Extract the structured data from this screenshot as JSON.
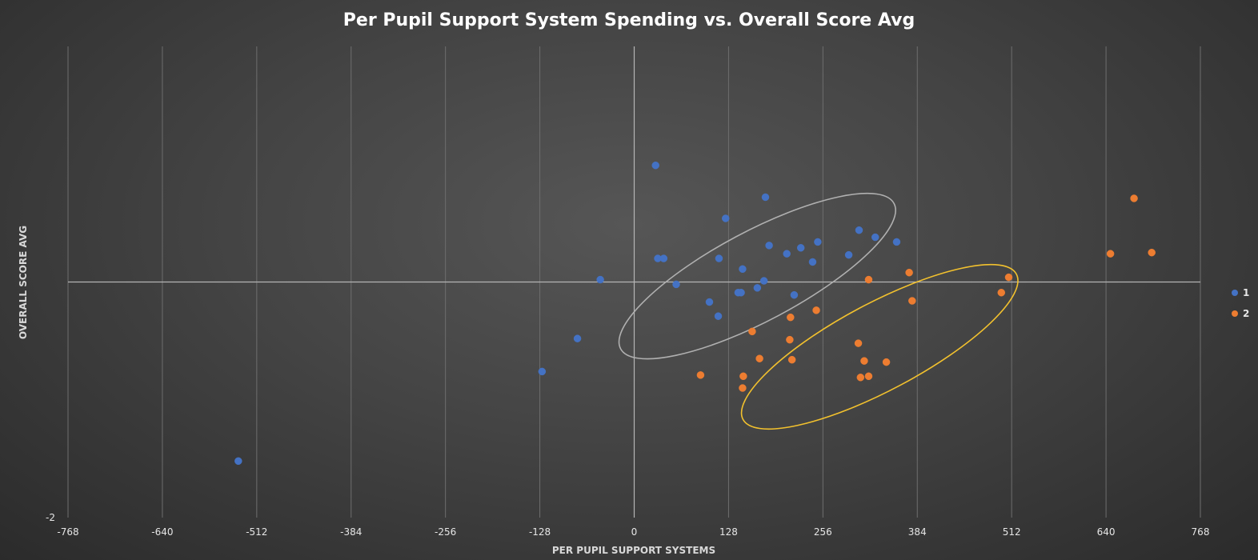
{
  "chart_data": {
    "type": "scatter",
    "title": "Per Pupil Support System Spending vs. Overall Score Avg",
    "xlabel": "PER PUPIL SUPPORT SYSTEMS",
    "ylabel": "OVERALL SCORE AVG",
    "xlim": [
      -768,
      768
    ],
    "ylim": [
      -2,
      2
    ],
    "x_ticks": [
      "-768",
      "-640",
      "-512",
      "-384",
      "-256",
      "-128",
      "0",
      "128",
      "256",
      "384",
      "512",
      "640",
      "768"
    ],
    "y_ticks": [
      "-2"
    ],
    "grid": "vertical",
    "legend_position": "right",
    "series": [
      {
        "name": "1",
        "color": "#4472c4",
        "points": [
          [
            29,
            0.99
          ],
          [
            124,
            0.54
          ],
          [
            178,
            0.72
          ],
          [
            305,
            0.44
          ],
          [
            327,
            0.38
          ],
          [
            356,
            0.34
          ],
          [
            183,
            0.31
          ],
          [
            226,
            0.29
          ],
          [
            249,
            0.34
          ],
          [
            207,
            0.24
          ],
          [
            291,
            0.23
          ],
          [
            242,
            0.17
          ],
          [
            32,
            0.2
          ],
          [
            40,
            0.2
          ],
          [
            115,
            0.2
          ],
          [
            147,
            0.11
          ],
          [
            176,
            0.01
          ],
          [
            -46,
            0.02
          ],
          [
            57,
            -0.02
          ],
          [
            167,
            -0.05
          ],
          [
            141,
            -0.09
          ],
          [
            145,
            -0.09
          ],
          [
            217,
            -0.11
          ],
          [
            102,
            -0.17
          ],
          [
            114,
            -0.29
          ],
          [
            -77,
            -0.48
          ],
          [
            -125,
            -0.76
          ],
          [
            -537,
            -1.52
          ]
        ]
      },
      {
        "name": "2",
        "color": "#ed7d31",
        "points": [
          [
            678,
            0.71
          ],
          [
            646,
            0.24
          ],
          [
            702,
            0.25
          ],
          [
            508,
            0.04
          ],
          [
            373,
            0.08
          ],
          [
            318,
            0.02
          ],
          [
            498,
            -0.09
          ],
          [
            377,
            -0.16
          ],
          [
            247,
            -0.24
          ],
          [
            212,
            -0.3
          ],
          [
            160,
            -0.42
          ],
          [
            211,
            -0.49
          ],
          [
            304,
            -0.52
          ],
          [
            170,
            -0.65
          ],
          [
            214,
            -0.66
          ],
          [
            312,
            -0.67
          ],
          [
            342,
            -0.68
          ],
          [
            90,
            -0.79
          ],
          [
            148,
            -0.8
          ],
          [
            307,
            -0.81
          ],
          [
            318,
            -0.8
          ],
          [
            147,
            -0.9
          ]
        ]
      }
    ],
    "annotations": [
      {
        "type": "ellipse",
        "color": "#b0b0b0",
        "center": [
          167,
          0.05
        ],
        "rx": 210,
        "ry": 0.38,
        "angle_deg": -28
      },
      {
        "type": "ellipse",
        "color": "#f2c12e",
        "center": [
          333,
          -0.55
        ],
        "rx": 210,
        "ry": 0.37,
        "angle_deg": -28
      }
    ]
  }
}
